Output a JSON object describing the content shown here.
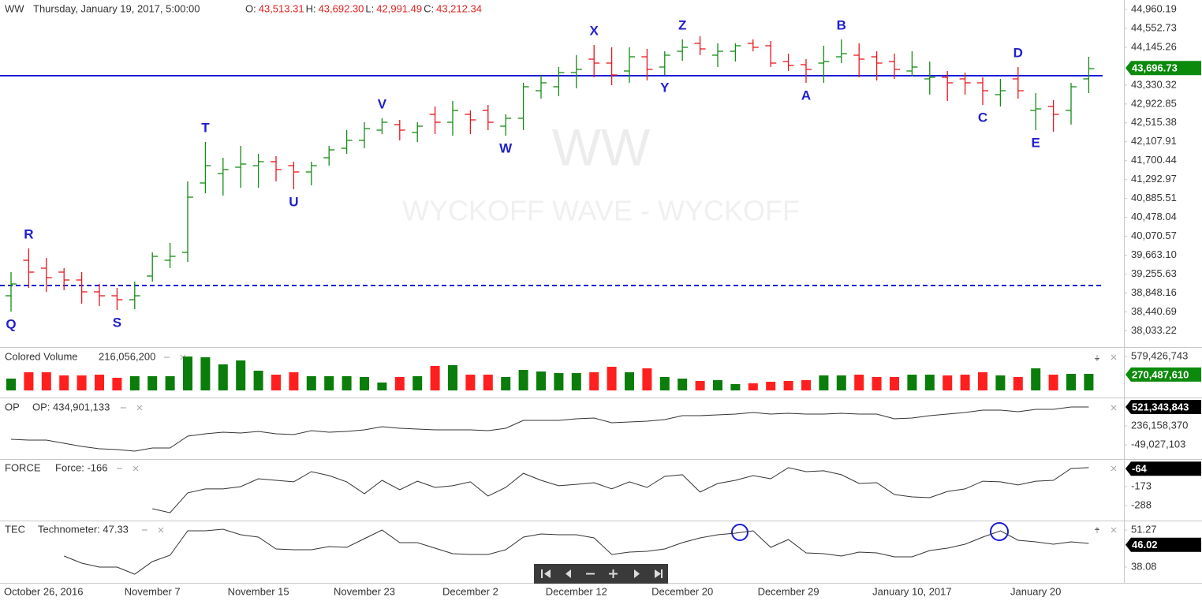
{
  "chart_data": [
    {
      "type": "ohlc",
      "title": "WW",
      "subtitle": "Thursday, January 19, 2017, 5:00:00",
      "header_values": [
        {
          "label": "O:",
          "value": "43,513.31"
        },
        {
          "label": "H:",
          "value": "43,692.30"
        },
        {
          "label": "L:",
          "value": "42,991.49"
        },
        {
          "label": "C:",
          "value": "43,212.34"
        }
      ],
      "watermark": [
        "WW",
        "WYCKOFF WAVE - WYCKOFF"
      ],
      "categories": [
        "October 26, 2016",
        null,
        null,
        null,
        null,
        null,
        null,
        null,
        "November 7",
        null,
        null,
        null,
        null,
        null,
        "November 15",
        null,
        null,
        null,
        null,
        null,
        "November 23",
        null,
        null,
        null,
        null,
        null,
        "December 2",
        null,
        null,
        null,
        null,
        null,
        "December 12",
        null,
        null,
        null,
        null,
        null,
        "December 20",
        null,
        null,
        null,
        null,
        null,
        "December 29",
        null,
        null,
        null,
        null,
        null,
        null,
        "January 10, 2017",
        null,
        null,
        null,
        null,
        null,
        null,
        "January 20",
        null,
        null,
        null
      ],
      "open": [
        38789,
        39554,
        39384,
        39299,
        39129,
        38874,
        38789,
        38704,
        39214,
        39554,
        39724,
        41220,
        41424,
        41560,
        41594,
        41679,
        41594,
        41458,
        41764,
        41968,
        42138,
        42359,
        42478,
        42308,
        42699,
        42529,
        42699,
        42784,
        42444,
        42614,
        43209,
        43294,
        43600,
        43889,
        43804,
        43634,
        43940,
        43719,
        44059,
        44229,
        43974,
        44059,
        44229,
        44178,
        43838,
        43770,
        43804,
        43940,
        43974,
        43940,
        43838,
        43634,
        43464,
        43498,
        43464,
        43379,
        43124,
        43464,
        42784,
        42869,
        42784,
        43464
      ],
      "high": [
        39299,
        39809,
        39605,
        39384,
        39299,
        39044,
        38959,
        39095,
        39724,
        39928,
        41254,
        42104,
        41764,
        42019,
        41849,
        41798,
        41679,
        41679,
        42019,
        42359,
        42529,
        42614,
        42580,
        42529,
        42869,
        42988,
        42784,
        42903,
        42699,
        43379,
        43549,
        43719,
        43974,
        44195,
        44144,
        44144,
        44110,
        44059,
        44314,
        44382,
        44229,
        44229,
        44314,
        44280,
        44008,
        43889,
        44178,
        44314,
        44229,
        44059,
        44008,
        44059,
        43838,
        43634,
        43600,
        43498,
        43464,
        43719,
        43158,
        43005,
        43379,
        43940
      ],
      "low": [
        38449,
        38959,
        38874,
        38908,
        38619,
        38568,
        38483,
        38500,
        39095,
        39384,
        39520,
        40999,
        40948,
        41118,
        41118,
        41254,
        41084,
        41169,
        41594,
        41849,
        41968,
        42274,
        42138,
        42104,
        42274,
        42240,
        42274,
        42359,
        42240,
        42359,
        43039,
        43090,
        43260,
        43498,
        43328,
        43379,
        43430,
        43549,
        43855,
        43974,
        43719,
        43838,
        44059,
        43719,
        43634,
        43379,
        43379,
        43804,
        43498,
        43430,
        43464,
        43515,
        43124,
        42988,
        43124,
        42903,
        42869,
        43039,
        42359,
        42325,
        42478,
        43158
      ],
      "close": [
        39044,
        39299,
        39180,
        39129,
        38874,
        38789,
        38704,
        38789,
        39639,
        39639,
        40914,
        41594,
        41509,
        41628,
        41679,
        41509,
        41458,
        41594,
        41934,
        42138,
        42393,
        42529,
        42359,
        42444,
        42529,
        42784,
        42580,
        42529,
        42614,
        43294,
        43379,
        43600,
        43668,
        43804,
        43549,
        43940,
        43668,
        43974,
        44144,
        44110,
        44059,
        44178,
        44144,
        43804,
        43753,
        43668,
        43838,
        44008,
        43889,
        43804,
        43668,
        43719,
        43498,
        43379,
        43379,
        43209,
        43209,
        43209,
        42818,
        42699,
        43294,
        43685
      ],
      "up_color": "#148c14",
      "down_color": "#e8161c",
      "ylim": [
        37684,
        45164
      ],
      "yticks": [
        {
          "value": 44960.19,
          "label": "44,960.19"
        },
        {
          "value": 44552.73,
          "label": "44,552.73"
        },
        {
          "value": 44145.26,
          "label": "44,145.26"
        },
        {
          "value": 43330.32,
          "label": "43,330.32"
        },
        {
          "value": 42922.85,
          "label": "42,922.85"
        },
        {
          "value": 42515.38,
          "label": "42,515.38"
        },
        {
          "value": 42107.91,
          "label": "42,107.91"
        },
        {
          "value": 41700.44,
          "label": "41,700.44"
        },
        {
          "value": 41292.97,
          "label": "41,292.97"
        },
        {
          "value": 40885.51,
          "label": "40,885.51"
        },
        {
          "value": 40478.04,
          "label": "40,478.04"
        },
        {
          "value": 40070.57,
          "label": "40,070.57"
        },
        {
          "value": 39663.1,
          "label": "39,663.10"
        },
        {
          "value": 39255.63,
          "label": "39,255.63"
        },
        {
          "value": 38848.16,
          "label": "38,848.16"
        },
        {
          "value": 38440.69,
          "label": "38,440.69"
        },
        {
          "value": 38033.22,
          "label": "38,033.22"
        }
      ],
      "last_value": {
        "value": 43696.73,
        "label": "43,696.73"
      },
      "last_color": "#0c8a0c",
      "hlines": [
        {
          "value": 43532,
          "style": "solid"
        },
        {
          "value": 39010,
          "style": "dashed"
        }
      ],
      "hline_color": "#1c1cd6",
      "annotation_color": "#1f1fd0",
      "annotations": [
        {
          "text": "Q",
          "bar": 0,
          "side": "below"
        },
        {
          "text": "R",
          "bar": 1,
          "side": "above"
        },
        {
          "text": "S",
          "bar": 6,
          "side": "below"
        },
        {
          "text": "T",
          "bar": 11,
          "side": "above"
        },
        {
          "text": "U",
          "bar": 16,
          "side": "below"
        },
        {
          "text": "V",
          "bar": 21,
          "side": "above"
        },
        {
          "text": "W",
          "bar": 28,
          "side": "below"
        },
        {
          "text": "X",
          "bar": 33,
          "side": "above"
        },
        {
          "text": "Y",
          "bar": 37,
          "side": "below"
        },
        {
          "text": "Z",
          "bar": 38,
          "side": "above"
        },
        {
          "text": "A",
          "bar": 45,
          "side": "below"
        },
        {
          "text": "B",
          "bar": 47,
          "side": "above"
        },
        {
          "text": "C",
          "bar": 55,
          "side": "below"
        },
        {
          "text": "D",
          "bar": 57,
          "side": "above"
        },
        {
          "text": "E",
          "bar": 58,
          "side": "below"
        }
      ]
    },
    {
      "type": "bar",
      "title": "Colored Volume",
      "subtitle": "216,056,200",
      "values": [
        202000000,
        310000000,
        310000000,
        256000000,
        256000000,
        269000000,
        216000000,
        243000000,
        243000000,
        243000000,
        579000000,
        566000000,
        445000000,
        512000000,
        337000000,
        269000000,
        310000000,
        243000000,
        243000000,
        243000000,
        229000000,
        135000000,
        229000000,
        243000000,
        418000000,
        431000000,
        269000000,
        269000000,
        229000000,
        350000000,
        323000000,
        296000000,
        296000000,
        310000000,
        404000000,
        310000000,
        377000000,
        229000000,
        202000000,
        162000000,
        175000000,
        108000000,
        121000000,
        148000000,
        162000000,
        175000000,
        256000000,
        256000000,
        269000000,
        229000000,
        229000000,
        269000000,
        269000000,
        256000000,
        269000000,
        310000000,
        256000000,
        229000000,
        377000000,
        269000000,
        283000000,
        283000000
      ],
      "up_color": "#0a7d0a",
      "down_color": "#ff1f1f",
      "ylim": [
        0,
        741130000
      ],
      "yticks": [
        {
          "value": 579426743,
          "label": "579,426,743"
        }
      ],
      "last_value": {
        "value": 270487610,
        "label": "270,487,610"
      },
      "last_color": "#0c8a0c"
    },
    {
      "type": "line",
      "label": "OP",
      "title": "OP: 434,901,133",
      "color": "#333333",
      "values": [
        34200000,
        22300000,
        22300000,
        -25300000,
        -72800000,
        -108400000,
        -120300000,
        -144100000,
        -96600000,
        -96600000,
        81700000,
        117300000,
        141100000,
        129200000,
        153000000,
        117300000,
        105400000,
        164900000,
        141100000,
        153000000,
        176700000,
        224300000,
        200500000,
        188600000,
        176700000,
        176700000,
        176700000,
        164900000,
        200500000,
        319300000,
        319300000,
        319300000,
        343100000,
        355000000,
        283700000,
        295600000,
        307500000,
        331200000,
        390600000,
        390600000,
        402500000,
        414400000,
        438200000,
        414400000,
        426300000,
        414400000,
        414400000,
        426300000,
        414400000,
        414400000,
        343100000,
        355000000,
        390600000,
        414400000,
        438200000,
        473800000,
        473800000,
        450000000,
        485700000,
        485700000,
        521300000,
        521300000
      ],
      "ylim": [
        -239160000,
        652060000
      ],
      "yticks": [
        {
          "value": 236158370,
          "label": "236,158,370"
        },
        {
          "value": -49027103,
          "label": "-49,027,103"
        }
      ],
      "last_value": {
        "value": 521343843,
        "label": "521,343,843"
      },
      "last_color": "#000000"
    },
    {
      "type": "line",
      "label": "FORCE",
      "title": "Force: -166",
      "color": "#333333",
      "values": [
        null,
        null,
        null,
        null,
        null,
        null,
        null,
        null,
        -307,
        -331,
        -211,
        -187,
        -187,
        -173,
        -125,
        -135,
        -144,
        -82,
        -106,
        -144,
        -216,
        -135,
        -192,
        -140,
        -178,
        -168,
        -144,
        -230,
        -178,
        -92,
        -135,
        -168,
        -159,
        -149,
        -187,
        -144,
        -178,
        -111,
        -101,
        -206,
        -154,
        -135,
        -106,
        -125,
        -58,
        -82,
        -77,
        -101,
        -154,
        -149,
        -221,
        -235,
        -240,
        -202,
        -187,
        -140,
        -144,
        -163,
        -140,
        -135,
        -63,
        -58
      ],
      "ylim": [
        -369,
        -10.5
      ],
      "yticks": [
        -173,
        -288
      ],
      "last_value": -64,
      "last_color": "#000000"
    },
    {
      "type": "line",
      "label": "TEC",
      "title": "Technometer: 47.33",
      "color": "#333333",
      "values": [
        null,
        null,
        null,
        42.01,
        39.48,
        38.08,
        38.08,
        35.56,
        40.05,
        42.29,
        50.99,
        50.99,
        51.55,
        49.59,
        48.74,
        44.54,
        44.26,
        44.26,
        45.38,
        45.1,
        48.18,
        51.27,
        46.78,
        46.78,
        44.82,
        42.85,
        42.57,
        42.57,
        44.26,
        48.74,
        49.87,
        49.59,
        49.59,
        48.46,
        42.57,
        43.41,
        43.69,
        44.54,
        46.78,
        48.46,
        49.59,
        50.15,
        50.99,
        45.1,
        47.9,
        43.13,
        42.85,
        42.01,
        43.41,
        43.13,
        41.73,
        41.73,
        43.97,
        44.82,
        46.22,
        48.74,
        50.99,
        47.62,
        47.06,
        46.22,
        47.06,
        46.5
      ],
      "ylim": [
        32.75,
        54.36
      ],
      "yticks": [
        51.27,
        38.08
      ],
      "last_value": 46.02,
      "last_color": "#000000"
    }
  ]
}
